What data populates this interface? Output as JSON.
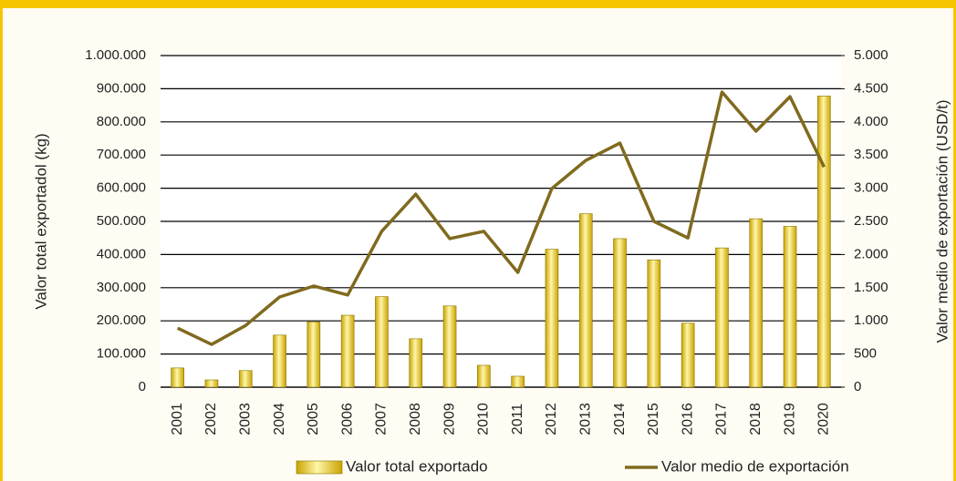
{
  "chart_data": {
    "type": "bar",
    "y_label": "Valor total exportadol (kg)",
    "y2_label": "Valor medio de exportación (USD/t)",
    "categories": [
      "2001",
      "2002",
      "2003",
      "2004",
      "2005",
      "2006",
      "2007",
      "2008",
      "2009",
      "2010",
      "2011",
      "2012",
      "2013",
      "2014",
      "2015",
      "2016",
      "2017",
      "2018",
      "2019",
      "2020"
    ],
    "series": [
      {
        "name": "Valor total exportado",
        "type": "bar",
        "color": "#C9A400",
        "values": [
          58000,
          22000,
          50000,
          157000,
          197000,
          217000,
          273000,
          146000,
          245000,
          66000,
          33000,
          416000,
          523000,
          448000,
          384000,
          193000,
          420000,
          508000,
          485000,
          878000
        ]
      },
      {
        "name": "Valor medio de exportación",
        "type": "line",
        "axis": "y2",
        "color": "#7F6A1E",
        "values": [
          890,
          645,
          930,
          1360,
          1525,
          1390,
          2350,
          2910,
          2240,
          2350,
          1730,
          2995,
          3420,
          3680,
          2500,
          2250,
          4450,
          3860,
          4380,
          3320
        ]
      }
    ],
    "ylim": [
      0,
      1000000
    ],
    "yticks": [
      0,
      {
        "value": 100000,
        "label": "100.000"
      },
      {
        "value": 200000,
        "label": "200.000"
      },
      {
        "value": 300000,
        "label": "300.000"
      },
      {
        "value": 400000,
        "label": "400.000"
      },
      {
        "value": 500000,
        "label": "500.000"
      },
      {
        "value": 600000,
        "label": "600.000"
      },
      {
        "value": 700000,
        "label": "700.000"
      },
      {
        "value": 800000,
        "label": "800.000"
      },
      {
        "value": 900000,
        "label": "900.000"
      },
      {
        "value": 1000000,
        "label": "1.000.000"
      }
    ],
    "y2lim": [
      0,
      5000
    ],
    "y2ticks": [
      0,
      500,
      {
        "value": 1000,
        "label": "1.000"
      },
      {
        "value": 1500,
        "label": "1.500"
      },
      {
        "value": 2000,
        "label": "2.000"
      },
      {
        "value": 2500,
        "label": "2.500"
      },
      {
        "value": 3000,
        "label": "3.000"
      },
      {
        "value": 3500,
        "label": "3.500"
      },
      {
        "value": 4000,
        "label": "4.000"
      },
      {
        "value": 4500,
        "label": "4.500"
      },
      {
        "value": 5000,
        "label": "5.000"
      }
    ],
    "grid": true,
    "legend": "bottom"
  }
}
